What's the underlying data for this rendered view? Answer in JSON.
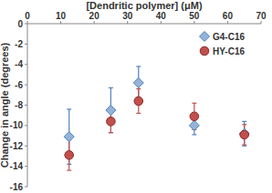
{
  "chart_data": {
    "type": "scatter",
    "x_label": "[Dendritic polymer] (μM)",
    "y_label": "Change in angle (degrees)",
    "x": [
      12.5,
      25,
      33.3,
      50,
      65
    ],
    "series": [
      {
        "name": "G4-C16",
        "color": "#95b3d7",
        "marker": "diamond",
        "values": [
          -11.1,
          -8.5,
          -5.8,
          -10.0,
          -10.8
        ],
        "errors": [
          2.7,
          2.2,
          1.6,
          0.9,
          1.2
        ]
      },
      {
        "name": "HY-C16",
        "color": "#c0504d",
        "marker": "circle",
        "values": [
          -12.9,
          -9.6,
          -7.6,
          -9.1,
          -10.9
        ],
        "errors": [
          1.5,
          1.1,
          1.2,
          1.3,
          1.0
        ]
      }
    ],
    "xlim": [
      0,
      70
    ],
    "xticks": [
      0,
      10,
      20,
      30,
      40,
      50,
      60,
      70
    ],
    "ylim": [
      -16,
      0
    ],
    "yticks": [
      0,
      -2,
      -4,
      -6,
      -8,
      -10,
      -12,
      -14,
      -16
    ],
    "grid": false,
    "legend": "upper right"
  }
}
